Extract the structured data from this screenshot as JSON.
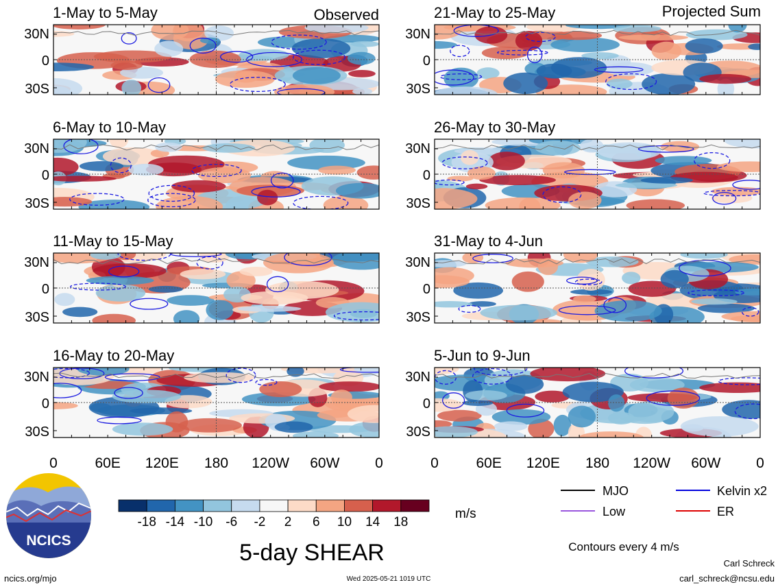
{
  "header": {
    "observed_label": "Observed",
    "projected_label": "Projected Sum"
  },
  "y_ticks": [
    "30N",
    "0",
    "30S"
  ],
  "x_ticks": [
    "0",
    "60E",
    "120E",
    "180",
    "120W",
    "60W",
    "0"
  ],
  "chart_data": [
    {
      "type": "heatmap",
      "panel": "observed",
      "title": "1-May to 5-May",
      "column": "left"
    },
    {
      "type": "heatmap",
      "panel": "observed",
      "title": "6-May to 10-May",
      "column": "left"
    },
    {
      "type": "heatmap",
      "panel": "observed",
      "title": "11-May to 15-May",
      "column": "left"
    },
    {
      "type": "heatmap",
      "panel": "observed",
      "title": "16-May to 20-May",
      "column": "left"
    },
    {
      "type": "heatmap",
      "panel": "projected",
      "title": "21-May to 25-May",
      "column": "right"
    },
    {
      "type": "heatmap",
      "panel": "projected",
      "title": "26-May to 30-May",
      "column": "right"
    },
    {
      "type": "heatmap",
      "panel": "projected",
      "title": "31-May to 4-Jun",
      "column": "right"
    },
    {
      "type": "heatmap",
      "panel": "projected",
      "title": "5-Jun to 9-Jun",
      "column": "right"
    }
  ],
  "colorbar": {
    "labels": [
      "-18",
      "-14",
      "-10",
      "-6",
      "-2",
      "2",
      "6",
      "10",
      "14",
      "18"
    ],
    "colors": [
      "#08306b",
      "#2166ac",
      "#4393c3",
      "#92c5de",
      "#c6dbef",
      "#f7f7f7",
      "#fddbc7",
      "#f4a582",
      "#d6604d",
      "#b2182b",
      "#67001f"
    ],
    "unit": "m/s"
  },
  "legend": {
    "items": [
      {
        "label": "MJO",
        "color": "#000000"
      },
      {
        "label": "Kelvin x2",
        "color": "#0000dd"
      },
      {
        "label": "Low",
        "color": "#9955dd"
      },
      {
        "label": "ER",
        "color": "#dd0000"
      }
    ],
    "contour_note": "Contours every 4 m/s"
  },
  "title": "5-day SHEAR",
  "logo_text": "NCICS",
  "footer": {
    "site": "ncics.org/mjo",
    "timestamp": "Wed 2025-05-21 1019 UTC",
    "author": "Carl Schreck",
    "email": "carl_schreck@ncsu.edu"
  }
}
